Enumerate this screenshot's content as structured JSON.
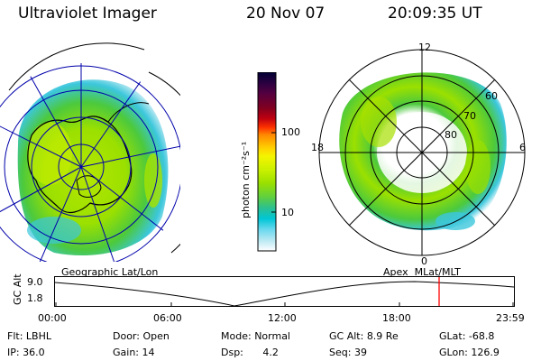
{
  "header": {
    "instrument": "Ultraviolet Imager",
    "date": "20 Nov 07",
    "time": "20:09:35 UT"
  },
  "colorbar": {
    "unit_label": "photon cm⁻²s⁻¹",
    "tick_labels": [
      "100",
      "10"
    ],
    "colors": [
      "#000033",
      "#2a0040",
      "#550040",
      "#800020",
      "#c00010",
      "#ff3300",
      "#ff8800",
      "#ffcc00",
      "#f4f400",
      "#c8f000",
      "#9be000",
      "#5fcf40",
      "#2cc090",
      "#00c6d6",
      "#6ad8ee",
      "#b8e8f2",
      "#ffffff"
    ]
  },
  "left_map": {
    "caption": "Geographic Lat/Lon",
    "colors": {
      "aurora_inner": "#a8e000",
      "aurora_mid": "#4cc93d",
      "aurora_outer": "#3cc7dc",
      "grid": "#0000aa",
      "coast": "#000000"
    }
  },
  "right_polar": {
    "caption": "Apex  MLat/MLT",
    "mlt_labels": {
      "top": "12",
      "left": "18",
      "right": "6",
      "bottom": "0"
    },
    "lat_labels": [
      "60",
      "70",
      "80"
    ]
  },
  "altitude_plot": {
    "ylabel": "GC Alt",
    "y_ticks": [
      "9.0",
      "1.8"
    ],
    "x_ticks": [
      "00:00",
      "06:00",
      "12:00",
      "18:00",
      "23:59"
    ],
    "marker_color": "#ff0000",
    "marker_time": "20:09:35"
  },
  "info_rows": [
    [
      {
        "label": "Flt:",
        "value": "LBHL"
      },
      {
        "label": "Door:",
        "value": "Open"
      },
      {
        "label": "Mode:",
        "value": "Normal"
      },
      {
        "label": "GC Alt:",
        "value": "8.9 Re"
      },
      {
        "label": "GLat:",
        "value": "-68.8"
      }
    ],
    [
      {
        "label": "IP:",
        "value": "36.0"
      },
      {
        "label": "Gain:",
        "value": "14"
      },
      {
        "label": "Dsp:",
        "value": "4.2"
      },
      {
        "label": "Seq:",
        "value": "39"
      },
      {
        "label": "GLon:",
        "value": "126.9"
      }
    ]
  ]
}
